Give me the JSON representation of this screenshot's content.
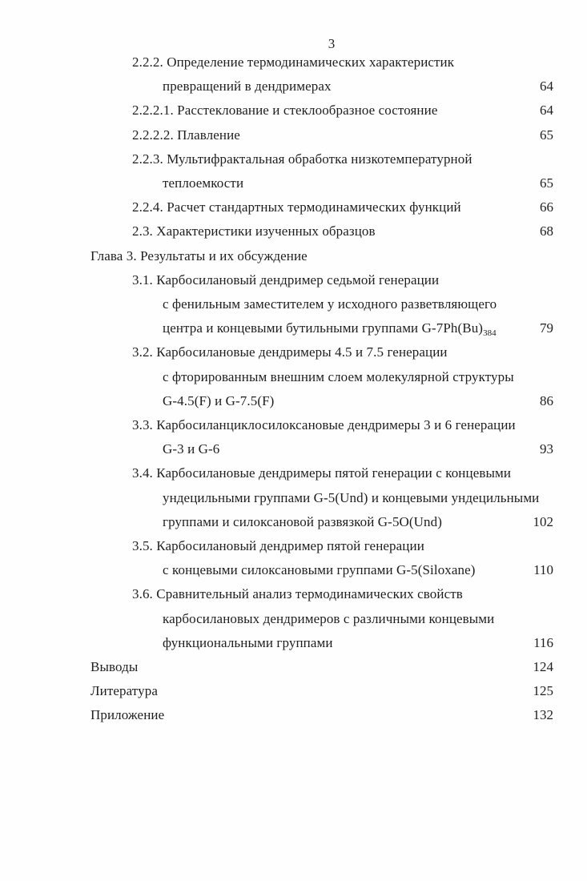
{
  "page": {
    "header_number": "3"
  },
  "colors": {
    "text": "#1f1f1f",
    "background": "#fefefe"
  },
  "toc": {
    "lines": [
      {
        "indent": 1,
        "text": "2.2.2. Определение термодинамических характеристик"
      },
      {
        "indent": 2,
        "text": "превращений в дендримерах",
        "page": "64"
      },
      {
        "indent": 1,
        "text": "2.2.2.1. Расстеклование и стеклообразное состояние",
        "page": "64"
      },
      {
        "indent": 1,
        "text": "2.2.2.2. Плавление",
        "page": "65"
      },
      {
        "indent": 1,
        "text": "2.2.3. Мультифрактальная обработка низкотемпературной"
      },
      {
        "indent": 2,
        "text": "теплоемкости",
        "page": "65"
      },
      {
        "indent": 1,
        "text": "2.2.4. Расчет стандартных термодинамических функций",
        "page": "66"
      },
      {
        "indent": 1,
        "text": "2.3. Характеристики изученных образцов",
        "page": "68"
      },
      {
        "indent": 0,
        "text": "Глава 3. Результаты и их обсуждение"
      },
      {
        "indent": 1,
        "text": "3.1. Карбосилановый дендример седьмой генерации"
      },
      {
        "indent": 2,
        "text": "с фенильным заместителем у исходного разветвляющего"
      },
      {
        "indent": 2,
        "text": "центра и концевыми бутильными группами G-7Ph(Bu)",
        "sub": "384",
        "page": "79"
      },
      {
        "indent": 1,
        "text": "3.2. Карбосилановые дендримеры 4.5 и 7.5 генерации"
      },
      {
        "indent": 2,
        "text": "с фторированным внешним слоем молекулярной структуры"
      },
      {
        "indent": 2,
        "text": "G-4.5(F) и G-7.5(F)",
        "page": "86"
      },
      {
        "indent": 1,
        "text": "3.3. Карбосиланциклосилоксановые дендримеры 3 и 6 генерации"
      },
      {
        "indent": 2,
        "text": "G-3 и G-6",
        "page": "93"
      },
      {
        "indent": 1,
        "text": "3.4. Карбосилановые дендримеры пятой генерации с концевыми"
      },
      {
        "indent": 2,
        "text": "ундецильными группами G-5(Und) и концевыми ундецильными"
      },
      {
        "indent": 2,
        "text": "группами и силоксановой развязкой G-5O(Und)",
        "page": "102"
      },
      {
        "indent": 1,
        "text": "3.5. Карбосилановый дендример пятой генерации"
      },
      {
        "indent": 2,
        "text": "с концевыми силоксановыми группами G-5(Siloxane)",
        "page": "110"
      },
      {
        "indent": 1,
        "text": "3.6. Сравнительный анализ термодинамических свойств"
      },
      {
        "indent": 2,
        "text": "карбосилановых дендримеров с различными концевыми"
      },
      {
        "indent": 2,
        "text": "функциональными группами",
        "page": "116"
      },
      {
        "indent": 0,
        "text": "Выводы",
        "page": "124"
      },
      {
        "indent": 0,
        "text": "Литература",
        "page": "125"
      },
      {
        "indent": 0,
        "text": "Приложение",
        "page": "132"
      }
    ]
  }
}
